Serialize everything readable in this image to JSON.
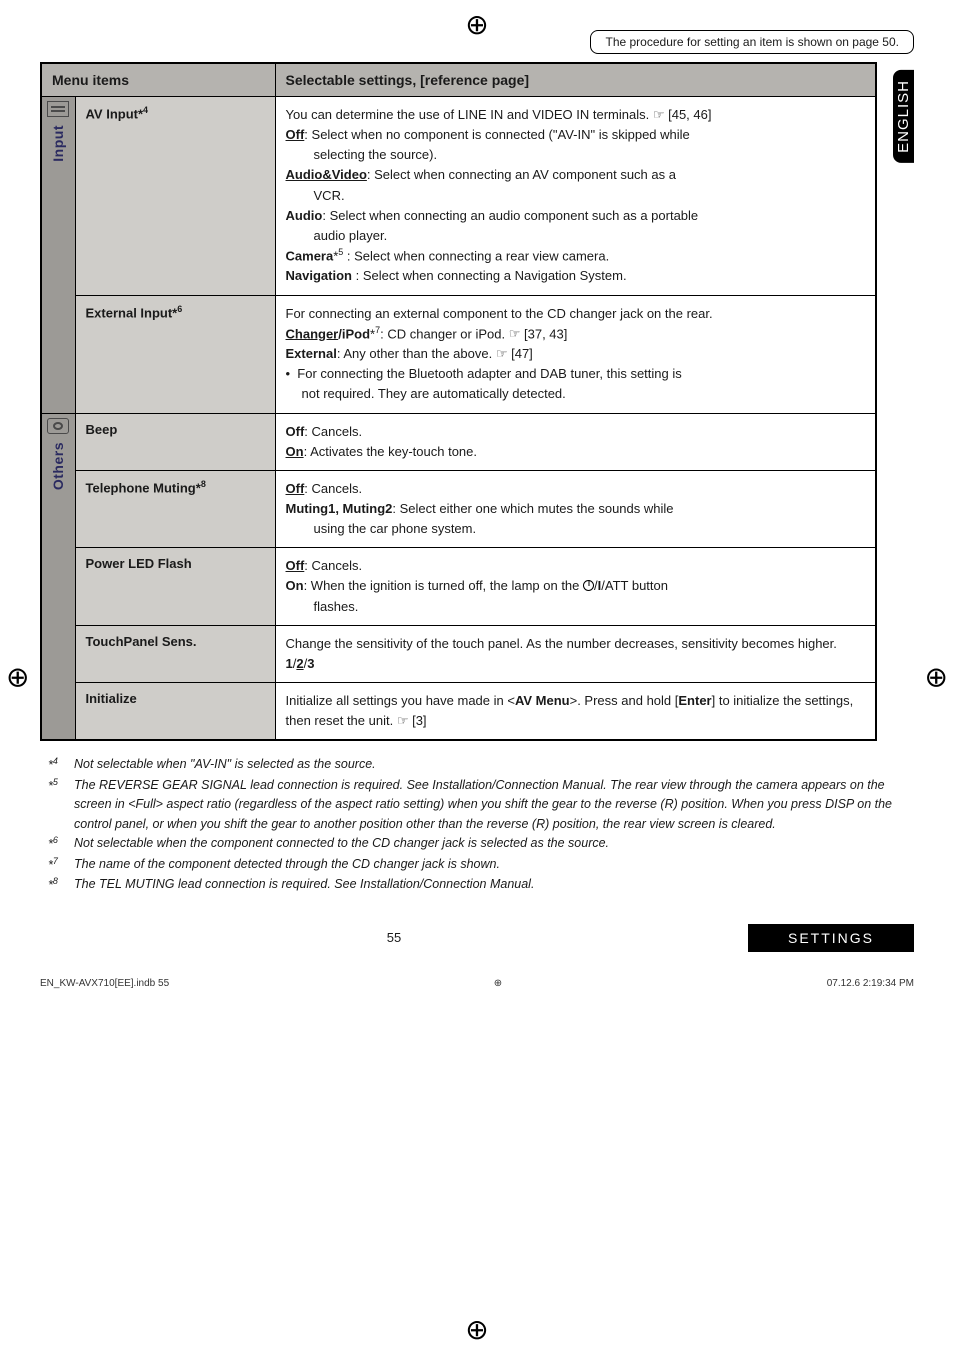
{
  "topbar": {
    "procedure_note": "The procedure for setting an item is shown on page 50."
  },
  "lang_badge": "ENGLISH",
  "table": {
    "header": {
      "menu": "Menu items",
      "settings": "Selectable settings, [reference page]"
    },
    "groups": [
      {
        "side_label": "Input",
        "icon_kind": "input",
        "rows": [
          {
            "menu_html": "AV Input*<span class='sup'>4</span>",
            "desc_html": "You can determine the use of LINE IN and VIDEO IN terminals. <span class='hand'>☞</span> [45, 46]<br><span class='b u'>Off</span>: Select when no component is connected (\"AV-IN\" is skipped while<span class='indent1'>selecting the source).</span><span class='b u'>Audio&Video</span>: Select when connecting an AV component such as a<span class='indent1'>VCR.</span><span class='b'>Audio</span>: Select when connecting an audio component such as a portable<span class='indent1'>audio player.</span><span class='b'>Camera</span>*<span class='sup'>5</span> : Select when connecting a rear view camera.<br><span class='b'>Navigation</span> : Select when connecting a Navigation System."
          },
          {
            "menu_html": "External Input*<span class='sup'>6</span>",
            "desc_html": "For connecting an external component to the CD changer jack on the rear.<br><span class='b u'>Changer</span><span class='b'>/iPod</span>*<span class='sup'>7</span>: CD changer or iPod. <span class='hand'>☞</span> [37, 43]<br><span class='b'>External</span>: Any other than the above. <span class='hand'>☞</span> [47]<br>•&nbsp;&nbsp;For connecting the Bluetooth adapter and DAB tuner, this setting is<span class='indent1' style='padding-left:16px'>not required. They are automatically detected.</span>"
          }
        ]
      },
      {
        "side_label": "Others",
        "icon_kind": "others",
        "rows": [
          {
            "menu_html": "Beep",
            "desc_html": "<span class='b'>Off</span>: Cancels.<br><span class='b u'>On</span>: Activates the key-touch tone."
          },
          {
            "menu_html": "Telephone Muting*<span class='sup'>8</span>",
            "desc_html": "<span class='b u'>Off</span>: Cancels.<br><span class='b'>Muting1, Muting2</span>: Select either one which mutes the sounds while<span class='indent1'>using the car phone system.</span>"
          },
          {
            "menu_html": "Power LED Flash",
            "desc_html": "<span class='b u'>Off</span>: Cancels.<br><span class='b'>On</span>: When the ignition is turned off, the lamp on the <span class='btn-glyph'></span>/<b>I</b>/ATT button<span class='indent1'>flashes.</span>"
          },
          {
            "menu_html": "TouchPanel Sens.",
            "desc_html": "Change the sensitivity of the touch panel. As the number decreases, sensitivity becomes higher. <span class='b'>1</span>/<span class='b u'>2</span>/<span class='b'>3</span>"
          },
          {
            "menu_html": "Initialize",
            "desc_html": "Initialize all settings you have made in &lt;<span class='b'>AV Menu</span>&gt;. Press and hold [<span class='b'>Enter</span>] to initialize the settings, then reset the unit. <span class='hand'>☞</span> [3]"
          }
        ]
      }
    ]
  },
  "footnotes": [
    {
      "tag": "*4",
      "text": "Not selectable when \"AV-IN\" is selected as the source."
    },
    {
      "tag": "*5",
      "text": "The REVERSE GEAR SIGNAL lead connection is required. See Installation/Connection Manual. The rear view through the camera appears on the screen in <Full> aspect ratio (regardless of the aspect ratio setting) when you shift the gear to the reverse (R) position. When you press DISP on the control panel, or when you shift the gear to another position other than the reverse (R) position, the rear view screen is cleared."
    },
    {
      "tag": "*6",
      "text": "Not selectable when the component connected to the CD changer jack is selected as the source."
    },
    {
      "tag": "*7",
      "text": "The name of the component detected through the CD changer jack is shown."
    },
    {
      "tag": "*8",
      "text": "The TEL MUTING lead connection is required. See Installation/Connection Manual."
    }
  ],
  "footer": {
    "page": "55",
    "section": "SETTINGS"
  },
  "meta": {
    "left": "EN_KW-AVX710[EE].indb   55",
    "right": "07.12.6   2:19:34 PM"
  }
}
